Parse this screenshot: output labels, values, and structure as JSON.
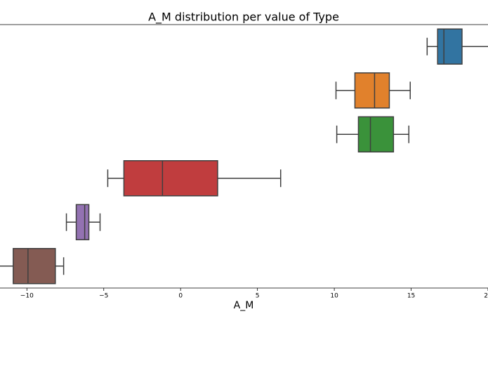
{
  "chart_data": {
    "type": "boxplot",
    "orientation": "horizontal",
    "title": "A_M distribution per value of Type",
    "xlabel": "A_M",
    "xlim": [
      -11.75,
      20
    ],
    "xticks": [
      {
        "value": -10,
        "label": "−10"
      },
      {
        "value": -5,
        "label": "−5"
      },
      0,
      5,
      10,
      15,
      20
    ],
    "categories": [
      null,
      null,
      null,
      null,
      null,
      null
    ],
    "boxes": [
      {
        "color": "#3274a1",
        "whislo": 16.04,
        "q1": 16.72,
        "med": 17.13,
        "q3": 18.31,
        "whishi": 20.5
      },
      {
        "color": "#e1812c",
        "whislo": 10.11,
        "q1": 11.34,
        "med": 12.62,
        "q3": 13.58,
        "whishi": 14.94
      },
      {
        "color": "#3a923a",
        "whislo": 10.16,
        "q1": 11.57,
        "med": 12.35,
        "q3": 13.85,
        "whishi": 14.85
      },
      {
        "color": "#c03d3e",
        "whislo": -4.74,
        "q1": -3.69,
        "med": -1.18,
        "q3": 2.41,
        "whishi": 6.51
      },
      {
        "color": "#9372b2",
        "whislo": -7.43,
        "q1": -6.79,
        "med": -6.24,
        "q3": -5.97,
        "whishi": -5.24
      },
      {
        "color": "#845b53",
        "whislo": -12.5,
        "q1": -10.89,
        "med": -9.93,
        "q3": -8.15,
        "whishi": -7.61
      }
    ]
  }
}
